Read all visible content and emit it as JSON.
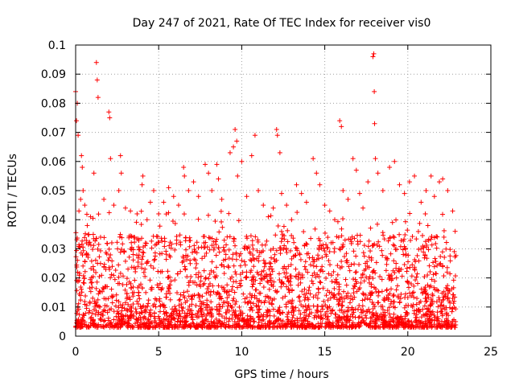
{
  "chart_data": {
    "type": "scatter",
    "title": "Day 247 of 2021, Rate Of TEC Index for receiver vis0",
    "xlabel": "GPS time / hours",
    "ylabel": "ROTI / TECUs",
    "xlim": [
      0,
      25
    ],
    "ylim": [
      0,
      0.1
    ],
    "xticks": [
      "0",
      "5",
      "10",
      "15",
      "20",
      "25"
    ],
    "yticks": [
      "0",
      "0.01",
      "0.02",
      "0.03",
      "0.04",
      "0.05",
      "0.06",
      "0.07",
      "0.08",
      "0.09",
      "0.1"
    ],
    "grid": true,
    "marker": "plus",
    "color": "#ff0000",
    "series": [
      {
        "points": [
          [
            0.0,
            0.084
          ],
          [
            0.05,
            0.074
          ],
          [
            0.1,
            0.08
          ],
          [
            0.15,
            0.069
          ],
          [
            0.2,
            0.043
          ],
          [
            0.3,
            0.047
          ],
          [
            0.35,
            0.062
          ],
          [
            0.4,
            0.058
          ],
          [
            0.45,
            0.05
          ],
          [
            0.55,
            0.045
          ],
          [
            0.7,
            0.038
          ],
          [
            0.9,
            0.041
          ],
          [
            1.1,
            0.056
          ],
          [
            1.25,
            0.094
          ],
          [
            1.3,
            0.088
          ],
          [
            1.35,
            0.082
          ],
          [
            1.5,
            0.034
          ],
          [
            1.7,
            0.047
          ],
          [
            2.0,
            0.077
          ],
          [
            2.05,
            0.075
          ],
          [
            2.1,
            0.061
          ],
          [
            2.3,
            0.045
          ],
          [
            2.6,
            0.05
          ],
          [
            2.7,
            0.062
          ],
          [
            2.75,
            0.056
          ],
          [
            3.0,
            0.044
          ],
          [
            3.3,
            0.043
          ],
          [
            3.5,
            0.034
          ],
          [
            3.7,
            0.042
          ],
          [
            4.0,
            0.052
          ],
          [
            4.05,
            0.055
          ],
          [
            4.3,
            0.04
          ],
          [
            4.5,
            0.046
          ],
          [
            4.7,
            0.05
          ],
          [
            5.0,
            0.042
          ],
          [
            5.3,
            0.046
          ],
          [
            5.6,
            0.051
          ],
          [
            5.9,
            0.048
          ],
          [
            6.2,
            0.045
          ],
          [
            6.5,
            0.058
          ],
          [
            6.55,
            0.055
          ],
          [
            6.8,
            0.05
          ],
          [
            7.1,
            0.053
          ],
          [
            7.4,
            0.048
          ],
          [
            7.8,
            0.059
          ],
          [
            8.0,
            0.056
          ],
          [
            8.2,
            0.05
          ],
          [
            8.5,
            0.059
          ],
          [
            8.6,
            0.054
          ],
          [
            8.8,
            0.047
          ],
          [
            9.3,
            0.063
          ],
          [
            9.5,
            0.065
          ],
          [
            9.6,
            0.071
          ],
          [
            9.7,
            0.067
          ],
          [
            9.75,
            0.055
          ],
          [
            10.0,
            0.06
          ],
          [
            10.3,
            0.048
          ],
          [
            10.6,
            0.062
          ],
          [
            10.8,
            0.069
          ],
          [
            11.0,
            0.05
          ],
          [
            11.3,
            0.045
          ],
          [
            11.6,
            0.041
          ],
          [
            11.9,
            0.044
          ],
          [
            12.1,
            0.071
          ],
          [
            12.15,
            0.069
          ],
          [
            12.3,
            0.063
          ],
          [
            12.4,
            0.049
          ],
          [
            12.7,
            0.045
          ],
          [
            13.0,
            0.04
          ],
          [
            13.3,
            0.052
          ],
          [
            13.6,
            0.049
          ],
          [
            13.9,
            0.046
          ],
          [
            14.3,
            0.061
          ],
          [
            14.5,
            0.056
          ],
          [
            14.7,
            0.052
          ],
          [
            15.0,
            0.045
          ],
          [
            15.3,
            0.043
          ],
          [
            15.6,
            0.04
          ],
          [
            15.9,
            0.074
          ],
          [
            16.0,
            0.072
          ],
          [
            16.1,
            0.05
          ],
          [
            16.4,
            0.047
          ],
          [
            16.7,
            0.061
          ],
          [
            16.9,
            0.057
          ],
          [
            17.1,
            0.049
          ],
          [
            17.3,
            0.044
          ],
          [
            17.6,
            0.053
          ],
          [
            17.9,
            0.096
          ],
          [
            17.95,
            0.097
          ],
          [
            17.98,
            0.084
          ],
          [
            18.0,
            0.073
          ],
          [
            18.05,
            0.061
          ],
          [
            18.2,
            0.056
          ],
          [
            18.5,
            0.05
          ],
          [
            18.9,
            0.058
          ],
          [
            19.2,
            0.06
          ],
          [
            19.5,
            0.052
          ],
          [
            19.8,
            0.049
          ],
          [
            20.1,
            0.053
          ],
          [
            20.4,
            0.055
          ],
          [
            20.8,
            0.046
          ],
          [
            21.1,
            0.05
          ],
          [
            21.4,
            0.055
          ],
          [
            21.6,
            0.048
          ],
          [
            21.9,
            0.053
          ],
          [
            22.1,
            0.054
          ],
          [
            22.4,
            0.05
          ],
          [
            22.7,
            0.043
          ],
          [
            22.85,
            0.036
          ]
        ]
      }
    ],
    "dense_band": {
      "description_range_hours": [
        0,
        22.9
      ],
      "floor": 0.003,
      "typical_max": 0.035
    }
  }
}
